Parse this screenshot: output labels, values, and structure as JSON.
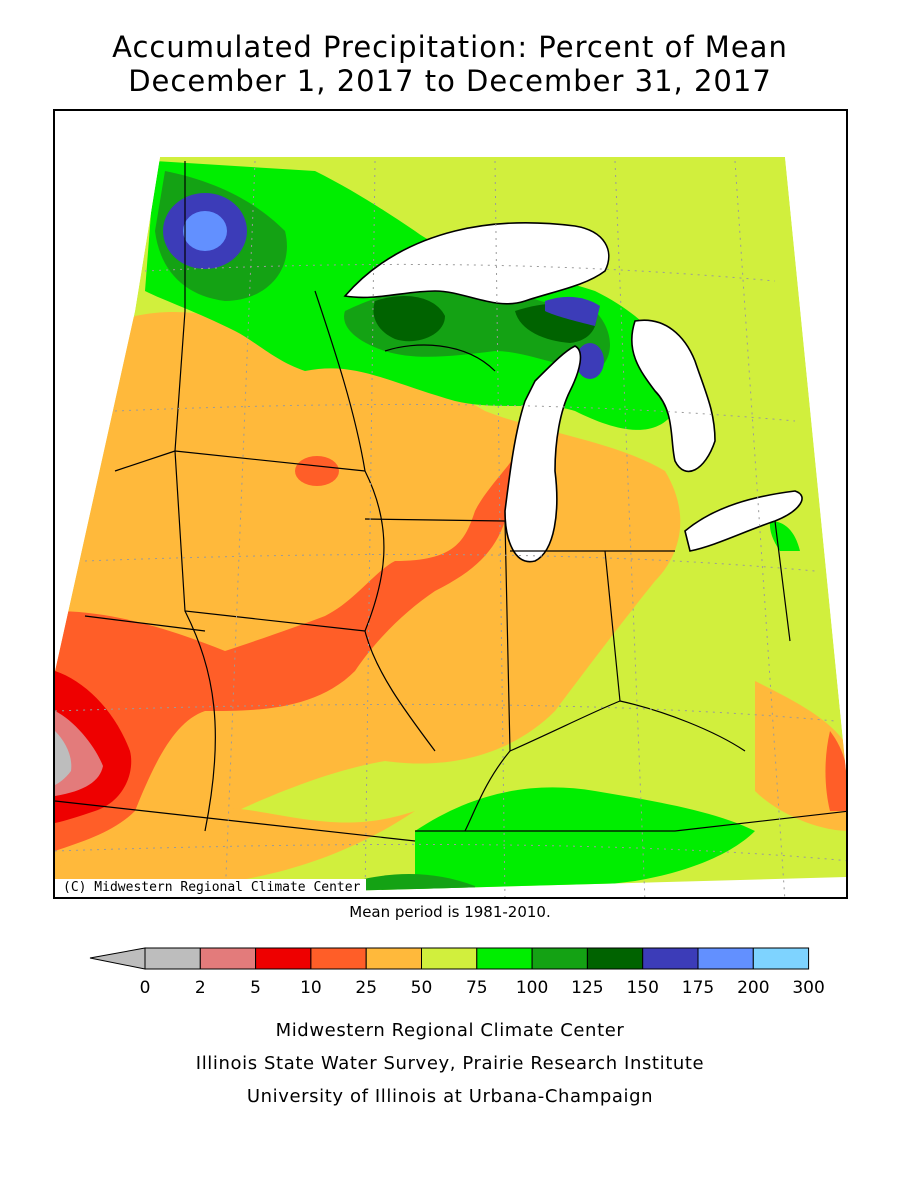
{
  "title": {
    "line1": "Accumulated Precipitation: Percent of Mean",
    "line2": "December 1, 2017 to December 31, 2017"
  },
  "copyright": "(C) Midwestern Regional Climate Center",
  "mean_note": "Mean period is 1981-2010.",
  "legend": {
    "ticks": [
      "0",
      "2",
      "5",
      "10",
      "25",
      "50",
      "75",
      "100",
      "125",
      "150",
      "175",
      "200",
      "300"
    ],
    "colors": [
      "#bdbdbd",
      "#e37b7b",
      "#ee0000",
      "#ff5e28",
      "#ffb93b",
      "#d1ef3d",
      "#00ee00",
      "#14a214",
      "#006300",
      "#3c3cb8",
      "#6290ff",
      "#7ed3ff"
    ],
    "under_color": "#bdbdbd"
  },
  "footer": {
    "line1": "Midwestern Regional Climate Center",
    "line2": "Illinois State Water Survey, Prairie Research Institute",
    "line3": "University of Illinois at Urbana-Champaign"
  },
  "map": {
    "water_color": "#ffffff",
    "background_color": "#d1ef3d"
  }
}
